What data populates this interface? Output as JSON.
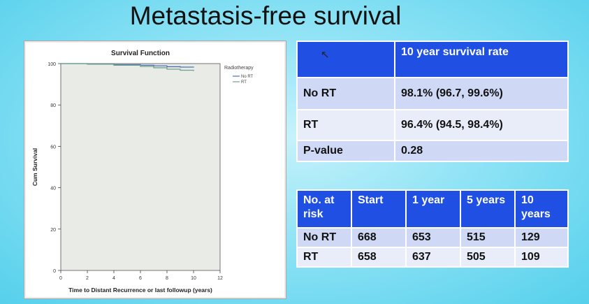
{
  "slide": {
    "title": "Metastasis-free survival"
  },
  "chart_data": {
    "type": "line",
    "title": "Survival Function",
    "xlabel": "Time to Distant Recurrence or last followup (years)",
    "ylabel": "Cum Survival",
    "xlim": [
      0,
      12
    ],
    "ylim": [
      0,
      100
    ],
    "x_ticks": [
      0,
      2,
      4,
      6,
      8,
      10,
      12
    ],
    "y_ticks": [
      0,
      20,
      40,
      60,
      80,
      100
    ],
    "legend_title": "Radiotherapy",
    "legend_position": "top-right, outside plot",
    "grid": false,
    "background_color": "#e8ebe6",
    "series": [
      {
        "name": "No RT",
        "color": "#4a6fb5",
        "x": [
          0,
          2,
          4,
          6,
          7,
          8,
          9,
          10
        ],
        "y": [
          100,
          99.8,
          99.5,
          99.2,
          98.9,
          98.5,
          98.3,
          98.1
        ]
      },
      {
        "name": "RT",
        "color": "#6fa08c",
        "x": [
          0,
          2,
          4,
          6,
          7,
          8,
          9,
          10
        ],
        "y": [
          100,
          99.7,
          99.2,
          98.6,
          98.0,
          97.3,
          96.8,
          96.4
        ]
      }
    ]
  },
  "survival_table": {
    "header": [
      "",
      "10 year survival rate"
    ],
    "rows": [
      {
        "label": "No RT",
        "value": "98.1% (96.7, 99.6%)"
      },
      {
        "label": "RT",
        "value": "96.4% (94.5, 98.4%)"
      },
      {
        "label": "P-value",
        "value": "0.28"
      }
    ]
  },
  "risk_table": {
    "header": [
      "No. at risk",
      "Start",
      "1 year",
      "5 years",
      "10 years"
    ],
    "rows": [
      [
        "No RT",
        "668",
        "653",
        "515",
        "129"
      ],
      [
        "RT",
        "658",
        "637",
        "505",
        "109"
      ]
    ]
  },
  "icons": {
    "cursor": "mouse-pointer-icon"
  }
}
